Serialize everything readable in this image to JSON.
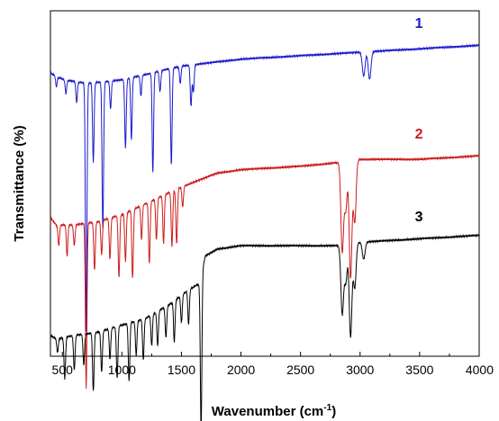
{
  "chart_data": {
    "type": "line",
    "title": "",
    "xlabel_main": "Wavenumber (cm",
    "xlabel_sup": "-1",
    "xlabel_tail": ")",
    "ylabel": "Transmittance (%)",
    "xlim": [
      400,
      4000
    ],
    "x_ticks": [
      "500",
      "1000",
      "1500",
      "2000",
      "2500",
      "3000",
      "3500",
      "4000"
    ],
    "y_ticks_shown": false,
    "grid": false,
    "legend": "none",
    "series": [
      {
        "label": "1",
        "color": "#1a1acc",
        "baseline": [
          [
            400,
            82
          ],
          [
            450,
            81
          ],
          [
            520,
            80
          ],
          [
            700,
            79
          ],
          [
            1000,
            80
          ],
          [
            1500,
            84
          ],
          [
            2000,
            86
          ],
          [
            2500,
            87
          ],
          [
            3000,
            88
          ],
          [
            3500,
            89
          ],
          [
            4000,
            90
          ]
        ],
        "peaks": [
          [
            450,
            3
          ],
          [
            530,
            4
          ],
          [
            620,
            6
          ],
          [
            700,
            72
          ],
          [
            760,
            23
          ],
          [
            840,
            43
          ],
          [
            905,
            8
          ],
          [
            1030,
            20
          ],
          [
            1080,
            18
          ],
          [
            1160,
            6
          ],
          [
            1260,
            29
          ],
          [
            1320,
            6
          ],
          [
            1415,
            28
          ],
          [
            1490,
            5
          ],
          [
            1580,
            12
          ],
          [
            1600,
            8
          ],
          [
            3030,
            7
          ],
          [
            3080,
            8
          ]
        ]
      },
      {
        "label": "2",
        "color": "#cc1a1a",
        "baseline": [
          [
            400,
            40
          ],
          [
            450,
            38
          ],
          [
            600,
            38
          ],
          [
            800,
            39
          ],
          [
            1000,
            41
          ],
          [
            1500,
            49
          ],
          [
            1800,
            53
          ],
          [
            2000,
            54
          ],
          [
            2500,
            55
          ],
          [
            2800,
            56
          ],
          [
            3000,
            57
          ],
          [
            3500,
            57
          ],
          [
            4000,
            58
          ]
        ],
        "peaks": [
          [
            470,
            6
          ],
          [
            540,
            9
          ],
          [
            600,
            6
          ],
          [
            700,
            48
          ],
          [
            770,
            14
          ],
          [
            830,
            10
          ],
          [
            900,
            12
          ],
          [
            975,
            18
          ],
          [
            1030,
            14
          ],
          [
            1090,
            20
          ],
          [
            1165,
            10
          ],
          [
            1230,
            18
          ],
          [
            1290,
            12
          ],
          [
            1350,
            14
          ],
          [
            1420,
            16
          ],
          [
            1460,
            16
          ],
          [
            1510,
            6
          ],
          [
            2850,
            26
          ],
          [
            2880,
            14
          ],
          [
            2920,
            34
          ],
          [
            2955,
            18
          ]
        ]
      },
      {
        "label": "3",
        "color": "#000000",
        "baseline": [
          [
            400,
            6
          ],
          [
            450,
            5
          ],
          [
            600,
            6
          ],
          [
            800,
            7
          ],
          [
            1000,
            9
          ],
          [
            1200,
            11
          ],
          [
            1400,
            15
          ],
          [
            1550,
            19
          ],
          [
            1650,
            21
          ],
          [
            1700,
            29
          ],
          [
            1800,
            31
          ],
          [
            2000,
            32
          ],
          [
            2500,
            32
          ],
          [
            2800,
            32
          ],
          [
            3000,
            33
          ],
          [
            3500,
            34
          ],
          [
            4000,
            35
          ]
        ],
        "peaks": [
          [
            460,
            4
          ],
          [
            520,
            12
          ],
          [
            600,
            10
          ],
          [
            680,
            9
          ],
          [
            760,
            17
          ],
          [
            830,
            12
          ],
          [
            900,
            9
          ],
          [
            960,
            15
          ],
          [
            1060,
            17
          ],
          [
            1120,
            10
          ],
          [
            1180,
            12
          ],
          [
            1250,
            9
          ],
          [
            1300,
            10
          ],
          [
            1370,
            9
          ],
          [
            1440,
            12
          ],
          [
            1500,
            8
          ],
          [
            1560,
            10
          ],
          [
            1665,
            45
          ],
          [
            2850,
            20
          ],
          [
            2880,
            11
          ],
          [
            2920,
            27
          ],
          [
            2955,
            13
          ],
          [
            3030,
            5
          ]
        ]
      }
    ]
  }
}
